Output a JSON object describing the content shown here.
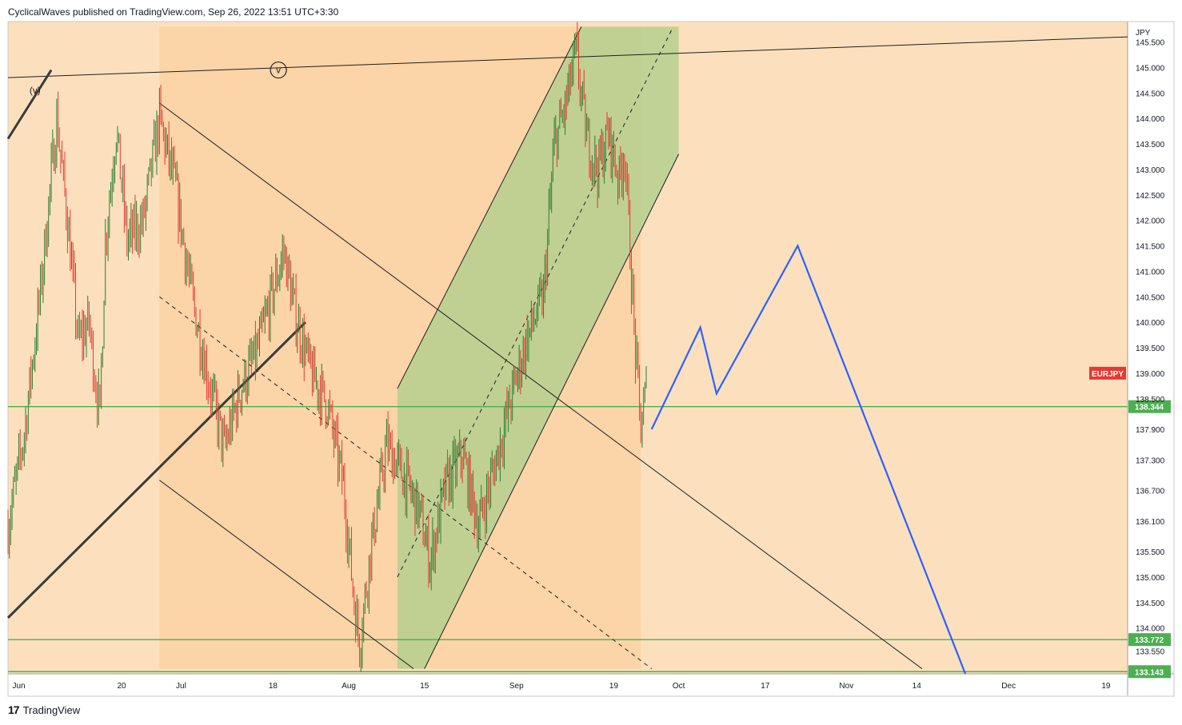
{
  "header": {
    "text": "CyclicalWaves published on TradingView.com, Sep 26, 2022 13:51 UTC+3:30"
  },
  "footer": {
    "brand": "TradingView",
    "logo_glyph": "17"
  },
  "colors": {
    "background": "#fce0bd",
    "up_candle": "#2e7d32",
    "down_candle": "#e53935",
    "hline": "#4caf50",
    "projection": "#2962ff",
    "channel_fill": "#b5cf8e",
    "box_fill": "#fbd3a4",
    "symbol_badge": "#e53935"
  },
  "chart_data": {
    "type": "candlestick",
    "symbol": "EURJPY",
    "currency": "JPY",
    "ylim": [
      133.1,
      145.9
    ],
    "x_range": [
      "2022-05-30",
      "2022-12-23"
    ],
    "y_ticks": [
      "145.500",
      "145.000",
      "144.500",
      "144.000",
      "143.500",
      "143.000",
      "142.500",
      "142.000",
      "141.500",
      "141.000",
      "140.500",
      "140.000",
      "139.500",
      "139.000",
      "138.500",
      "137.900",
      "137.300",
      "136.700",
      "136.100",
      "135.500",
      "135.000",
      "134.500",
      "134.000",
      "133.550"
    ],
    "x_ticks": [
      {
        "label": "Jun",
        "date": "2022-06-01"
      },
      {
        "label": "20",
        "date": "2022-06-20"
      },
      {
        "label": "Jul",
        "date": "2022-07-01"
      },
      {
        "label": "18",
        "date": "2022-07-18"
      },
      {
        "label": "Aug",
        "date": "2022-08-01"
      },
      {
        "label": "15",
        "date": "2022-08-15"
      },
      {
        "label": "Sep",
        "date": "2022-09-01"
      },
      {
        "label": "19",
        "date": "2022-09-19"
      },
      {
        "label": "Oct",
        "date": "2022-10-01"
      },
      {
        "label": "17",
        "date": "2022-10-17"
      },
      {
        "label": "Nov",
        "date": "2022-11-01"
      },
      {
        "label": "14",
        "date": "2022-11-14"
      },
      {
        "label": "Dec",
        "date": "2022-12-01"
      },
      {
        "label": "19",
        "date": "2022-12-19"
      }
    ],
    "price_path": [
      [
        "2022-05-30",
        136.0
      ],
      [
        "2022-06-02",
        137.8
      ],
      [
        "2022-06-05",
        140.6
      ],
      [
        "2022-06-08",
        144.0
      ],
      [
        "2022-06-10",
        142.0
      ],
      [
        "2022-06-12",
        139.6
      ],
      [
        "2022-06-14",
        140.0
      ],
      [
        "2022-06-15",
        139.0
      ],
      [
        "2022-06-16",
        138.2
      ],
      [
        "2022-06-17",
        141.6
      ],
      [
        "2022-06-19",
        143.8
      ],
      [
        "2022-06-21",
        141.6
      ],
      [
        "2022-06-24",
        142.0
      ],
      [
        "2022-06-27",
        144.0
      ],
      [
        "2022-06-30",
        142.6
      ],
      [
        "2022-07-03",
        140.5
      ],
      [
        "2022-07-06",
        138.9
      ],
      [
        "2022-07-09",
        137.5
      ],
      [
        "2022-07-12",
        138.7
      ],
      [
        "2022-07-15",
        139.4
      ],
      [
        "2022-07-18",
        140.6
      ],
      [
        "2022-07-20",
        141.4
      ],
      [
        "2022-07-22",
        140.2
      ],
      [
        "2022-07-25",
        139.0
      ],
      [
        "2022-07-28",
        138.4
      ],
      [
        "2022-07-31",
        136.8
      ],
      [
        "2022-08-02",
        134.5
      ],
      [
        "2022-08-03",
        133.7
      ],
      [
        "2022-08-05",
        135.5
      ],
      [
        "2022-08-08",
        137.6
      ],
      [
        "2022-08-11",
        137.0
      ],
      [
        "2022-08-14",
        136.3
      ],
      [
        "2022-08-16",
        135.3
      ],
      [
        "2022-08-19",
        136.8
      ],
      [
        "2022-08-22",
        137.4
      ],
      [
        "2022-08-25",
        136.0
      ],
      [
        "2022-08-28",
        137.2
      ],
      [
        "2022-08-31",
        138.5
      ],
      [
        "2022-09-03",
        139.7
      ],
      [
        "2022-09-06",
        140.5
      ],
      [
        "2022-09-08",
        143.5
      ],
      [
        "2022-09-10",
        144.2
      ],
      [
        "2022-09-12",
        145.3
      ],
      [
        "2022-09-14",
        143.6
      ],
      [
        "2022-09-16",
        143.0
      ],
      [
        "2022-09-18",
        143.7
      ],
      [
        "2022-09-20",
        142.8
      ],
      [
        "2022-09-21",
        143.4
      ],
      [
        "2022-09-22",
        141.4
      ],
      [
        "2022-09-23",
        139.4
      ],
      [
        "2022-09-24",
        137.9
      ],
      [
        "2022-09-25",
        138.7
      ]
    ],
    "last_price_badge": "EURJPY",
    "horizontal_levels": [
      {
        "label": "138.344",
        "value": 138.344
      },
      {
        "label": "133.772",
        "value": 133.772
      },
      {
        "label": "133.143",
        "value": 133.143
      }
    ],
    "projection_path": [
      [
        "2022-09-26",
        137.9
      ],
      [
        "2022-10-05",
        139.9
      ],
      [
        "2022-10-08",
        138.6
      ],
      [
        "2022-10-23",
        141.5
      ],
      [
        "2022-11-23",
        133.1
      ]
    ],
    "annotations": [
      {
        "text": "v",
        "date": "2022-07-19",
        "value": 144.95,
        "style": "circled"
      },
      {
        "text": "(v)",
        "date": "2022-06-04",
        "value": 144.55,
        "style": "plain"
      }
    ],
    "trendlines": [
      {
        "name": "resistance",
        "from": [
          "2022-05-30",
          144.8
        ],
        "to": [
          "2022-12-23",
          145.6
        ]
      },
      {
        "name": "wedge-upper",
        "from": [
          "2022-06-27",
          144.3
        ],
        "to": [
          "2022-11-15",
          133.2
        ]
      },
      {
        "name": "wedge-lower",
        "from": [
          "2022-06-27",
          136.9
        ],
        "to": [
          "2022-08-13",
          133.2
        ]
      },
      {
        "name": "wedge-mid",
        "from": [
          "2022-06-27",
          140.5
        ],
        "to": [
          "2022-09-26",
          133.2
        ]
      },
      {
        "name": "thick-support-1",
        "from": [
          "2022-05-30",
          134.2
        ],
        "to": [
          "2022-07-24",
          140.0
        ]
      },
      {
        "name": "thick-support-2",
        "from": [
          "2022-05-30",
          143.6
        ],
        "to": [
          "2022-06-07",
          144.95
        ]
      },
      {
        "name": "green-upper",
        "from": [
          "2022-08-10",
          138.7
        ],
        "to": [
          "2022-09-13",
          145.8
        ]
      },
      {
        "name": "green-lower",
        "from": [
          "2022-08-15",
          133.2
        ],
        "to": [
          "2022-10-01",
          143.3
        ]
      },
      {
        "name": "green-mid",
        "from": [
          "2022-08-10",
          135.0
        ],
        "to": [
          "2022-09-30",
          145.8
        ]
      }
    ],
    "shaded_regions": [
      {
        "name": "orange-box",
        "from": [
          "2022-06-27",
          145.8
        ],
        "to": [
          "2022-09-24",
          133.2
        ],
        "color": "box_fill"
      },
      {
        "name": "green-channel",
        "polygon": [
          [
            "2022-08-10",
            138.7
          ],
          [
            "2022-08-10",
            133.2
          ],
          [
            "2022-08-15",
            133.2
          ],
          [
            "2022-10-01",
            143.3
          ],
          [
            "2022-10-01",
            145.8
          ],
          [
            "2022-09-13",
            145.8
          ]
        ],
        "color": "channel_fill"
      }
    ]
  }
}
